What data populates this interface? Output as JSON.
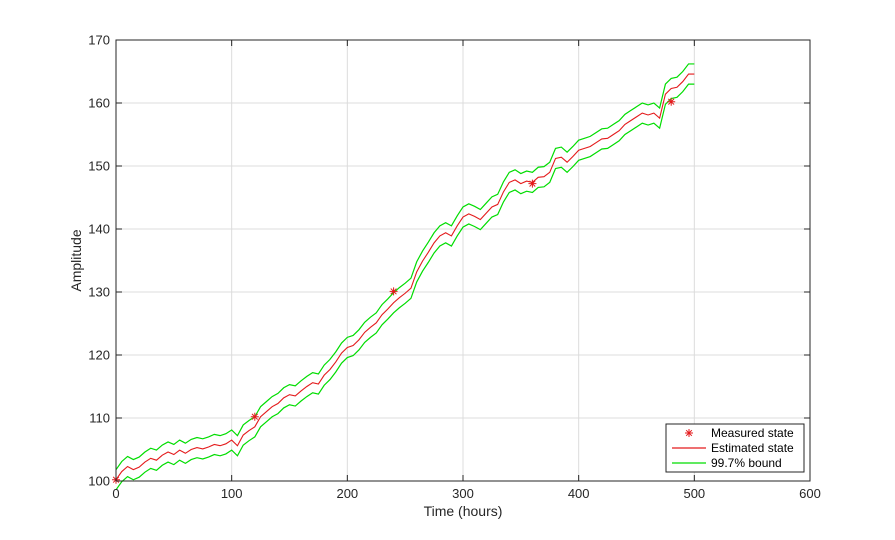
{
  "chart_data": {
    "type": "line",
    "title": "",
    "xlabel": "Time (hours)",
    "ylabel": "Amplitude",
    "xlim": [
      0,
      600
    ],
    "ylim": [
      100,
      170
    ],
    "xticks": [
      "0",
      "100",
      "200",
      "300",
      "400",
      "500",
      "600"
    ],
    "yticks": [
      "100",
      "110",
      "120",
      "130",
      "140",
      "150",
      "160",
      "170"
    ],
    "grid": true,
    "legend_position": "bottom-right",
    "bound_halfwidth": 1.6,
    "series": [
      {
        "name": "Measured state",
        "kind": "marker",
        "marker": "asterisk",
        "color": "#e41a1c",
        "x": [
          0,
          120,
          240,
          360,
          480
        ],
        "y": [
          100.2,
          110.2,
          130.1,
          147.2,
          160.2
        ]
      },
      {
        "name": "Estimated state",
        "kind": "line",
        "color": "#e41a1c",
        "x": [
          0,
          5,
          10,
          15,
          20,
          25,
          30,
          35,
          40,
          45,
          50,
          55,
          60,
          65,
          70,
          75,
          80,
          85,
          90,
          95,
          100,
          105,
          110,
          115,
          120,
          125,
          130,
          135,
          140,
          145,
          150,
          155,
          160,
          165,
          170,
          175,
          180,
          185,
          190,
          195,
          200,
          205,
          210,
          215,
          220,
          225,
          230,
          235,
          240,
          245,
          250,
          255,
          260,
          265,
          270,
          275,
          280,
          285,
          290,
          295,
          300,
          305,
          310,
          315,
          320,
          325,
          330,
          335,
          340,
          345,
          350,
          355,
          360,
          365,
          370,
          375,
          380,
          385,
          390,
          395,
          400,
          405,
          410,
          415,
          420,
          425,
          430,
          435,
          440,
          445,
          450,
          455,
          460,
          465,
          470,
          475,
          480,
          485,
          490,
          495,
          500
        ],
        "y": [
          100.2,
          101.5,
          102.3,
          101.8,
          102.2,
          103.0,
          103.6,
          103.3,
          104.1,
          104.6,
          104.2,
          104.9,
          104.4,
          105.0,
          105.3,
          105.1,
          105.4,
          105.8,
          105.6,
          105.9,
          106.5,
          105.6,
          107.3,
          108.0,
          108.6,
          110.2,
          111.0,
          111.8,
          112.3,
          113.2,
          113.7,
          113.5,
          114.3,
          115.0,
          115.6,
          115.4,
          116.8,
          117.7,
          118.9,
          120.3,
          121.2,
          121.5,
          122.4,
          123.6,
          124.4,
          125.1,
          126.4,
          127.3,
          128.3,
          129.1,
          129.8,
          130.6,
          133.2,
          134.9,
          136.3,
          137.8,
          138.9,
          139.4,
          138.9,
          140.5,
          141.9,
          142.4,
          142.0,
          141.5,
          142.5,
          143.5,
          143.9,
          145.9,
          147.4,
          147.8,
          147.2,
          147.6,
          147.4,
          148.2,
          148.3,
          149.0,
          151.2,
          151.4,
          150.6,
          151.5,
          152.5,
          152.8,
          153.1,
          153.7,
          154.3,
          154.4,
          155.0,
          155.6,
          156.6,
          157.2,
          157.8,
          158.4,
          158.1,
          158.4,
          157.6,
          161.4,
          162.3,
          162.5,
          163.4,
          164.6,
          164.6
        ]
      },
      {
        "name": "99.7% bound",
        "kind": "band",
        "color": "#00dd00"
      }
    ]
  }
}
